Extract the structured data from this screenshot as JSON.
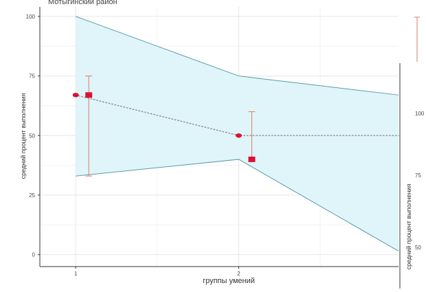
{
  "chart_data": {
    "type": "line",
    "title": "Мотыгинский район",
    "xlabel": "группы умений",
    "ylabel": "средний процент выполнения",
    "x_ticks": [
      1,
      2
    ],
    "y_ticks": [
      0,
      25,
      50,
      75,
      100
    ],
    "xlim": [
      0.78,
      2.98
    ],
    "ylim": [
      -5,
      104
    ],
    "grid": true,
    "colors": {
      "band_fill": "#dff5fa",
      "band_line": "#5a9aa6",
      "dots": "#dd1133",
      "dotted_line": "#9a9a9a",
      "error_bar": "#e07a66",
      "grid": "#e6e6e6",
      "axis": "#333333"
    },
    "band": {
      "x": [
        1,
        2,
        2.98
      ],
      "upper": [
        100,
        75,
        67
      ],
      "lower": [
        33,
        40,
        1.5
      ]
    },
    "dotted_series": {
      "x": [
        1,
        2,
        2.98
      ],
      "values": [
        67,
        50,
        50
      ]
    },
    "points": [
      {
        "x": 1,
        "value": 67
      },
      {
        "x": 2,
        "value": 50
      }
    ],
    "error_points": [
      {
        "x": 1.08,
        "value": 67,
        "low": 33,
        "high": 75
      },
      {
        "x": 2.08,
        "value": 40,
        "low": 40,
        "high": 60
      }
    ],
    "side_panel": {
      "ylabel": "средний процент выполнения",
      "y_ticks": [
        100,
        75,
        50
      ],
      "error_top": 100
    }
  }
}
